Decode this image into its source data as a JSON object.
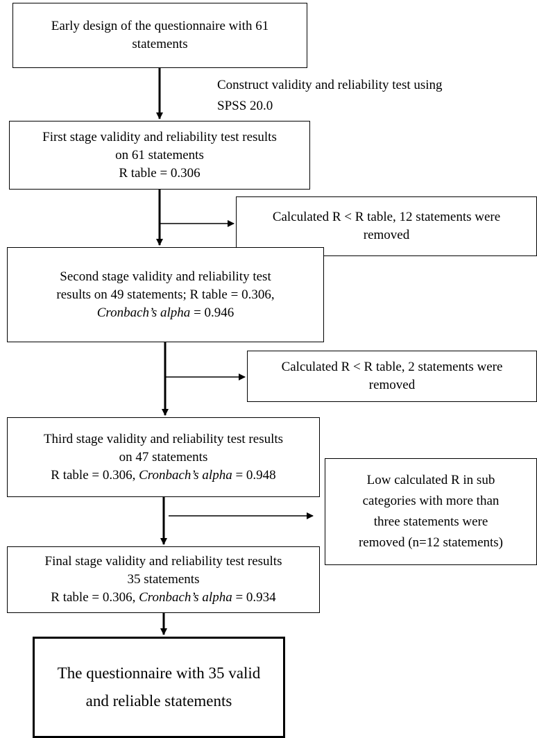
{
  "boxes": {
    "early_design": {
      "line1": "Early design of the questionnaire with 61",
      "line2": "statements"
    },
    "construct_note": {
      "line1": "Construct validity and reliability test using",
      "line2": "SPSS 20.0"
    },
    "first_stage": {
      "line1": "First stage validity and reliability test results",
      "line2": "on 61 statements",
      "line3": "R table = 0.306"
    },
    "removed_12": {
      "line1": "Calculated R < R table, 12 statements were",
      "line2": "removed"
    },
    "second_stage": {
      "line1": "Second stage validity and reliability test",
      "line2": "results on 49 statements; R table = 0.306,",
      "line3_italic": "Cronbach’s alpha",
      "line3_rest": " = 0.946"
    },
    "removed_2": {
      "line1": "Calculated R < R table, 2 statements were",
      "line2": "removed"
    },
    "third_stage": {
      "line1": "Third stage validity and reliability test results",
      "line2": "on 47 statements",
      "line3_start": "R table = 0.306, ",
      "line3_italic": "Cronbach’s alpha",
      "line3_rest": " = 0.948"
    },
    "removed_subcat": {
      "line1": "Low calculated R in sub",
      "line2": "categories with more than",
      "line3": "three statements were",
      "line4": "removed (n=12 statements)"
    },
    "final_stage": {
      "line1": "Final stage validity and reliability test results",
      "line2": "35 statements",
      "line3_start": "R table = 0.306, ",
      "line3_italic": "Cronbach’s alpha",
      "line3_rest": " = 0.934"
    },
    "final_result": {
      "line1": "The questionnaire with 35 valid",
      "line2": "and reliable statements"
    }
  }
}
